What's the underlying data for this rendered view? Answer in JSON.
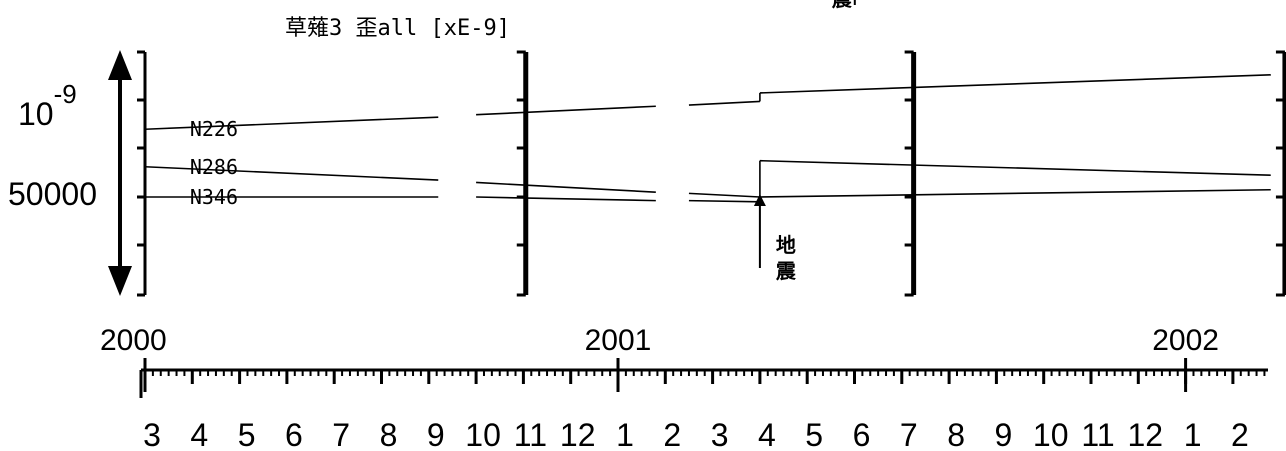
{
  "chart_data": {
    "type": "line",
    "title": "草薙3 歪all [xE-9]",
    "scale_bar": {
      "top_label_base": "10",
      "top_label_exp": "-9",
      "bottom_label": "50000"
    },
    "x_axis": {
      "start": "2000-03",
      "end": "2002-02",
      "year_labels": [
        {
          "label": "2000",
          "month_index": 0
        },
        {
          "label": "2001",
          "month_index": 10
        },
        {
          "label": "2002",
          "month_index": 22
        }
      ],
      "month_labels": [
        "3",
        "4",
        "5",
        "6",
        "7",
        "8",
        "9",
        "10",
        "11",
        "12",
        "1",
        "2",
        "3",
        "4",
        "5",
        "6",
        "7",
        "8",
        "9",
        "10",
        "11",
        "12",
        "1",
        "2"
      ]
    },
    "series": [
      {
        "name": "N226",
        "segments": [
          {
            "x": [
              0,
              6.2
            ],
            "y": [
              2.8,
              3.3
            ]
          },
          {
            "x": [
              7.0,
              10.8
            ],
            "y": [
              3.4,
              3.75
            ]
          },
          {
            "x": [
              11.5,
              13.0
            ],
            "y": [
              3.8,
              3.95
            ]
          },
          {
            "x": [
              13.0,
              13.0
            ],
            "y": [
              3.95,
              4.3
            ]
          },
          {
            "x": [
              13.0,
              23.8
            ],
            "y": [
              4.3,
              5.05
            ]
          }
        ]
      },
      {
        "name": "N286",
        "segments": [
          {
            "x": [
              0,
              6.2
            ],
            "y": [
              1.25,
              0.7
            ]
          },
          {
            "x": [
              7.0,
              10.8
            ],
            "y": [
              0.6,
              0.2
            ]
          },
          {
            "x": [
              11.5,
              13.0
            ],
            "y": [
              0.15,
              0.0
            ]
          },
          {
            "x": [
              13.0,
              13.0
            ],
            "y": [
              0.0,
              1.5
            ]
          },
          {
            "x": [
              13.0,
              23.8
            ],
            "y": [
              1.5,
              0.9
            ]
          }
        ]
      },
      {
        "name": "N346",
        "segments": [
          {
            "x": [
              0,
              6.2
            ],
            "y": [
              0.0,
              0.0
            ]
          },
          {
            "x": [
              7.0,
              10.8
            ],
            "y": [
              0.0,
              -0.15
            ]
          },
          {
            "x": [
              11.5,
              13.0
            ],
            "y": [
              -0.15,
              -0.2
            ]
          },
          {
            "x": [
              13.0,
              13.0
            ],
            "y": [
              -0.2,
              0.0
            ]
          },
          {
            "x": [
              13.0,
              23.8
            ],
            "y": [
              0.0,
              0.3
            ]
          }
        ]
      }
    ],
    "event_markers": [
      {
        "label_line1": "地",
        "label_line2": "震",
        "month_index": 13
      },
      {
        "label_line1": "",
        "label_line2": "震",
        "month_index": 16
      }
    ],
    "bracket_month_indices": [
      8.05,
      16.25,
      24.1
    ]
  }
}
